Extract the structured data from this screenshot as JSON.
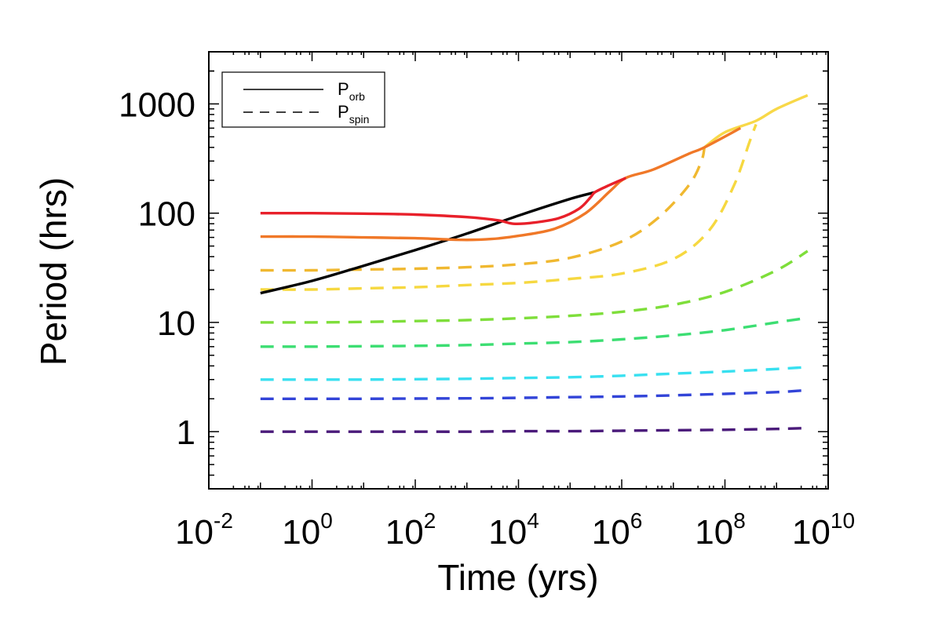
{
  "chart_data": {
    "type": "line",
    "title": "",
    "xlabel": "Time (yrs)",
    "ylabel": "Period (hrs)",
    "x_scale": "log",
    "y_scale": "log",
    "xlim": [
      0.01,
      10000000000
    ],
    "ylim": [
      0.3,
      3000
    ],
    "grid": false,
    "legend_position": "top-left",
    "x_ticks": [
      {
        "base": "10",
        "exp": "-2",
        "value": 0.01
      },
      {
        "base": "10",
        "exp": "0",
        "value": 1
      },
      {
        "base": "10",
        "exp": "2",
        "value": 100
      },
      {
        "base": "10",
        "exp": "4",
        "value": 10000
      },
      {
        "base": "10",
        "exp": "6",
        "value": 1000000
      },
      {
        "base": "10",
        "exp": "8",
        "value": 100000000
      },
      {
        "base": "10",
        "exp": "10",
        "value": 10000000000
      }
    ],
    "y_ticks": [
      {
        "label": "1",
        "value": 1
      },
      {
        "label": "10",
        "value": 10
      },
      {
        "label": "100",
        "value": 100
      },
      {
        "label": "1000",
        "value": 1000
      }
    ],
    "legend": [
      {
        "base": "P",
        "sub": "orb",
        "style": "solid"
      },
      {
        "base": "P",
        "sub": "spin",
        "style": "dashed"
      }
    ],
    "series": [
      {
        "style": "solid",
        "color": "#000000",
        "x": [
          0.1,
          1,
          10,
          100,
          1000,
          10000,
          100000,
          300000
        ],
        "y": [
          18.5,
          24,
          33,
          46,
          65,
          95,
          135,
          155
        ]
      },
      {
        "style": "solid",
        "color": "#e8202a",
        "x": [
          0.1,
          1,
          10,
          100,
          1000,
          4000,
          8000,
          20000,
          60000,
          150000,
          250000,
          300000,
          500000,
          1200000
        ],
        "y": [
          100,
          100,
          99,
          97,
          92,
          86,
          80,
          82,
          90,
          110,
          140,
          155,
          175,
          210
        ]
      },
      {
        "style": "solid",
        "color": "#f07828",
        "x": [
          0.1,
          1,
          10,
          100,
          800,
          3000,
          10000,
          50000,
          200000,
          600000,
          1200000,
          4000000,
          20000000,
          40000000,
          200000000
        ],
        "y": [
          61,
          61,
          60,
          59,
          57,
          58,
          62,
          72,
          100,
          160,
          210,
          250,
          350,
          400,
          600
        ]
      },
      {
        "style": "dashed",
        "color": "#f0b830",
        "x": [
          0.1,
          1,
          10,
          100,
          1000,
          10000,
          100000,
          1000000,
          5000000,
          20000000,
          35000000,
          40000000
        ],
        "y": [
          30,
          30,
          30.5,
          31,
          32,
          34,
          39,
          55,
          90,
          180,
          300,
          400
        ]
      },
      {
        "style": "dashed",
        "color": "#f6d840",
        "x": [
          0.1,
          1,
          10,
          100,
          1000,
          10000,
          100000,
          1000000,
          10000000,
          50000000,
          150000000,
          300000000,
          400000000
        ],
        "y": [
          20,
          20,
          20.5,
          21,
          22,
          23,
          25,
          28,
          38,
          70,
          180,
          450,
          650
        ]
      },
      {
        "style": "solid",
        "color": "#f8d848",
        "x": [
          40000000,
          100000000,
          400000000,
          1000000000,
          4000000000
        ],
        "y": [
          400,
          550,
          700,
          900,
          1200
        ]
      },
      {
        "style": "dashed",
        "color": "#7ede3a",
        "x": [
          0.1,
          1,
          10,
          100,
          1000,
          10000,
          100000,
          1000000,
          10000000,
          100000000,
          1000000000,
          4000000000
        ],
        "y": [
          10,
          10,
          10.1,
          10.3,
          10.5,
          10.9,
          11.5,
          12.5,
          14.5,
          19,
          30,
          45
        ]
      },
      {
        "style": "dashed",
        "color": "#3cde72",
        "x": [
          0.1,
          1,
          10,
          100,
          1000,
          10000,
          100000,
          1000000,
          10000000,
          100000000,
          1000000000,
          4000000000
        ],
        "y": [
          6,
          6,
          6.05,
          6.1,
          6.2,
          6.4,
          6.6,
          7,
          7.6,
          8.5,
          10,
          11
        ]
      },
      {
        "style": "dashed",
        "color": "#38e0f0",
        "x": [
          0.1,
          1,
          10,
          100,
          1000,
          10000,
          100000,
          1000000,
          10000000,
          100000000,
          1000000000,
          4000000000
        ],
        "y": [
          3,
          3,
          3,
          3.02,
          3.05,
          3.1,
          3.15,
          3.25,
          3.4,
          3.55,
          3.75,
          3.9
        ]
      },
      {
        "style": "dashed",
        "color": "#3244d8",
        "x": [
          0.1,
          1,
          10,
          100,
          1000,
          10000,
          100000,
          1000000,
          10000000,
          100000000,
          1000000000,
          4000000000
        ],
        "y": [
          2,
          2,
          2,
          2.01,
          2.02,
          2.04,
          2.07,
          2.1,
          2.15,
          2.22,
          2.3,
          2.4
        ]
      },
      {
        "style": "dashed",
        "color": "#4a1a7a",
        "x": [
          0.1,
          1,
          10,
          100,
          1000,
          10000,
          100000,
          1000000,
          10000000,
          100000000,
          1000000000,
          4000000000
        ],
        "y": [
          1,
          1,
          1,
          1,
          1,
          1.01,
          1.01,
          1.02,
          1.03,
          1.04,
          1.06,
          1.08
        ]
      }
    ]
  }
}
